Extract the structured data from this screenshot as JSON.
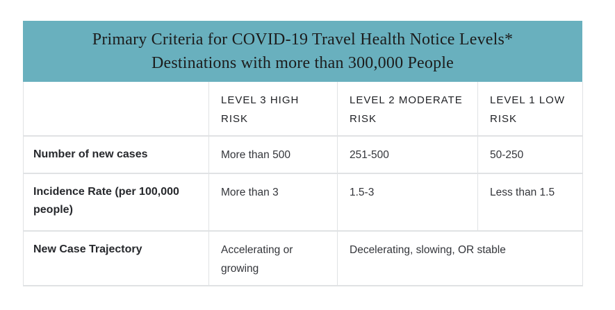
{
  "banner": {
    "title_line1": "Primary Criteria for COVID-19 Travel Health Notice Levels*",
    "title_line2": "Destinations with more than 300,000 People",
    "bg_color": "#69b0be"
  },
  "table": {
    "column_headers": [
      "",
      "LEVEL 3 HIGH RISK",
      "LEVEL 2 MODERATE RISK",
      "LEVEL 1 LOW RISK"
    ],
    "rows": [
      {
        "label": "Number of new cases",
        "level3": "More than 500",
        "level2": "251-500",
        "level1": "50-250"
      },
      {
        "label": "Incidence Rate (per 100,000 people)",
        "level3": "More than 3",
        "level2": "1.5-3",
        "level1": "Less than 1.5"
      },
      {
        "label": "New Case Trajectory",
        "level3": "Accelerating or growing",
        "level2_and_level1": "Decelerating, slowing, OR stable"
      }
    ],
    "border_color": "#e0e2e4"
  },
  "chart_data": {
    "type": "table",
    "title": "Primary Criteria for COVID-19 Travel Health Notice Levels*",
    "subtitle": "Destinations with more than 300,000 People",
    "columns": [
      "",
      "LEVEL 3 HIGH RISK",
      "LEVEL 2 MODERATE RISK",
      "LEVEL 1 LOW RISK"
    ],
    "rows": [
      [
        "Number of new cases",
        "More than 500",
        "251-500",
        "50-250"
      ],
      [
        "Incidence Rate (per 100,000 people)",
        "More than 3",
        "1.5-3",
        "Less than 1.5"
      ],
      [
        "New Case Trajectory",
        "Accelerating or growing",
        "Decelerating, slowing, OR stable (spans Level 2 and Level 1 columns)"
      ]
    ],
    "layout": {
      "header_banner_color": "#69b0be",
      "grid": true,
      "merged_cells": [
        {
          "row": 2,
          "columns": [
            2,
            3
          ]
        }
      ]
    }
  }
}
